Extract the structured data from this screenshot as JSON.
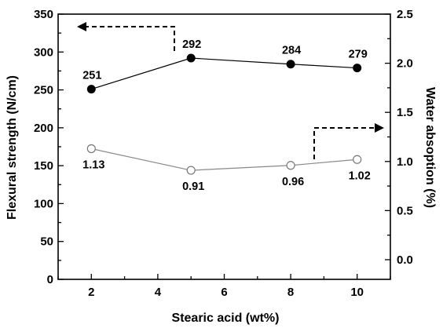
{
  "chart_data": {
    "type": "line",
    "xlabel": "Stearic acid  (wt%)",
    "ylabel": "Flexural strength  (N/cm)",
    "y2label": "Water absoption  (%)",
    "xlim": [
      1,
      11
    ],
    "ylim": [
      0,
      350
    ],
    "y2lim": [
      -0.2,
      2.5
    ],
    "xticks": [
      2,
      4,
      6,
      8,
      10
    ],
    "yticks": [
      0,
      50,
      100,
      150,
      200,
      250,
      300,
      350
    ],
    "y2ticks": [
      0.0,
      0.5,
      1.0,
      1.5,
      2.0,
      2.5
    ],
    "grid": false,
    "x": [
      2,
      5,
      8,
      10
    ],
    "series": [
      {
        "axis": "left",
        "marker": "filled-circle",
        "color": "#000000",
        "values": [
          251,
          292,
          284,
          279
        ],
        "labels": [
          "251",
          "292",
          "284",
          "279"
        ]
      },
      {
        "axis": "right",
        "marker": "open-circle",
        "color": "#888888",
        "values": [
          1.13,
          0.91,
          0.96,
          1.02
        ],
        "labels": [
          "1.13",
          "0.91",
          "0.96",
          "1.02"
        ]
      }
    ],
    "annotations": [
      {
        "type": "dashed-arrow",
        "direction": "left",
        "points_to": "left-axis"
      },
      {
        "type": "dashed-arrow",
        "direction": "right",
        "points_to": "right-axis"
      }
    ]
  }
}
